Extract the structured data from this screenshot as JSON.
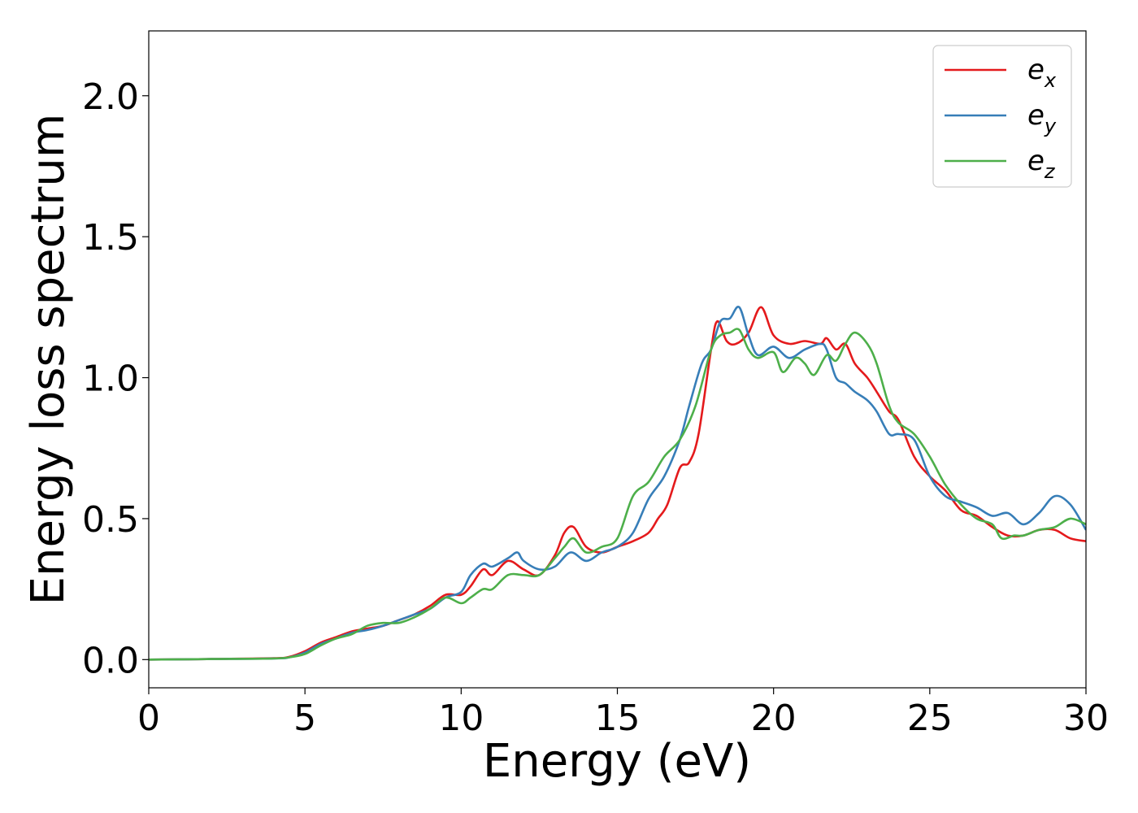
{
  "chart_data": {
    "type": "line",
    "title": "",
    "xlabel": "Energy (eV)",
    "ylabel": "Energy loss spectrum",
    "xlim": [
      0,
      30
    ],
    "ylim": [
      -0.1,
      2.23
    ],
    "xticks": [
      0,
      5,
      10,
      15,
      20,
      25,
      30
    ],
    "xtick_labels": [
      "0",
      "5",
      "10",
      "15",
      "20",
      "25",
      "30"
    ],
    "yticks": [
      0.0,
      0.5,
      1.0,
      1.5,
      2.0
    ],
    "ytick_labels": [
      "0.0",
      "0.5",
      "1.0",
      "1.5",
      "2.0"
    ],
    "grid": false,
    "legend": {
      "position": "top-right",
      "entries": [
        {
          "base": "e",
          "sub": "x",
          "color": "#e41a1c"
        },
        {
          "base": "e",
          "sub": "y",
          "color": "#377eb8"
        },
        {
          "base": "e",
          "sub": "z",
          "color": "#4daf4a"
        }
      ]
    },
    "series": [
      {
        "color": "#e41a1c",
        "x": [
          0,
          2,
          4,
          4.5,
          5,
          5.5,
          6,
          6.5,
          7,
          7.5,
          8,
          8.5,
          9,
          9.5,
          10,
          10.3,
          10.7,
          11,
          11.5,
          12,
          12.5,
          13,
          13.3,
          13.6,
          14,
          14.5,
          15,
          15.5,
          16,
          16.3,
          16.6,
          17,
          17.3,
          17.6,
          18,
          18.2,
          18.5,
          18.8,
          19.2,
          19.6,
          20,
          20.5,
          21,
          21.5,
          21.7,
          22,
          22.3,
          22.6,
          23,
          23.3,
          23.7,
          24,
          24.5,
          25,
          25.5,
          26,
          26.5,
          27,
          27.5,
          28,
          28.5,
          29,
          29.5,
          30
        ],
        "y": [
          0.0,
          0.002,
          0.005,
          0.01,
          0.03,
          0.06,
          0.08,
          0.1,
          0.11,
          0.12,
          0.14,
          0.16,
          0.19,
          0.23,
          0.23,
          0.26,
          0.32,
          0.3,
          0.35,
          0.32,
          0.3,
          0.37,
          0.45,
          0.47,
          0.4,
          0.38,
          0.4,
          0.42,
          0.45,
          0.5,
          0.55,
          0.68,
          0.7,
          0.8,
          1.1,
          1.2,
          1.13,
          1.12,
          1.16,
          1.25,
          1.15,
          1.12,
          1.13,
          1.12,
          1.14,
          1.1,
          1.12,
          1.05,
          1.0,
          0.95,
          0.88,
          0.85,
          0.72,
          0.65,
          0.6,
          0.53,
          0.51,
          0.47,
          0.44,
          0.44,
          0.46,
          0.46,
          0.43,
          0.42
        ]
      },
      {
        "color": "#377eb8",
        "x": [
          0,
          2,
          4,
          4.5,
          5,
          5.5,
          6,
          6.5,
          7,
          7.5,
          8,
          8.5,
          9,
          9.5,
          10,
          10.3,
          10.7,
          11,
          11.5,
          11.8,
          12,
          12.5,
          13,
          13.5,
          14,
          14.5,
          15,
          15.5,
          16,
          16.5,
          17,
          17.3,
          17.7,
          18,
          18.3,
          18.6,
          18.9,
          19.2,
          19.5,
          20,
          20.5,
          21,
          21.5,
          21.7,
          22,
          22.3,
          22.6,
          23,
          23.3,
          23.7,
          24,
          24.5,
          25,
          25.5,
          26,
          26.5,
          27,
          27.5,
          28,
          28.5,
          29,
          29.5,
          30
        ],
        "y": [
          0.0,
          0.002,
          0.004,
          0.008,
          0.025,
          0.055,
          0.075,
          0.095,
          0.105,
          0.12,
          0.14,
          0.16,
          0.18,
          0.22,
          0.24,
          0.3,
          0.34,
          0.33,
          0.36,
          0.38,
          0.35,
          0.32,
          0.33,
          0.38,
          0.35,
          0.38,
          0.4,
          0.45,
          0.57,
          0.65,
          0.78,
          0.9,
          1.05,
          1.1,
          1.2,
          1.21,
          1.25,
          1.15,
          1.08,
          1.11,
          1.07,
          1.1,
          1.12,
          1.1,
          1.0,
          0.98,
          0.95,
          0.92,
          0.88,
          0.8,
          0.8,
          0.78,
          0.65,
          0.58,
          0.56,
          0.54,
          0.51,
          0.52,
          0.48,
          0.52,
          0.58,
          0.55,
          0.46
        ]
      },
      {
        "color": "#4daf4a",
        "x": [
          0,
          2,
          4,
          4.5,
          5,
          5.5,
          6,
          6.5,
          7,
          7.5,
          8,
          8.5,
          9,
          9.5,
          10,
          10.3,
          10.7,
          11,
          11.5,
          12,
          12.5,
          13,
          13.3,
          13.6,
          14,
          14.5,
          15,
          15.5,
          16,
          16.5,
          17,
          17.5,
          18,
          18.3,
          18.6,
          18.9,
          19.2,
          19.5,
          20,
          20.3,
          20.7,
          21,
          21.3,
          21.7,
          22,
          22.3,
          22.6,
          23,
          23.3,
          23.7,
          24,
          24.5,
          25,
          25.5,
          26,
          26.5,
          27,
          27.3,
          27.7,
          28,
          28.5,
          29,
          29.5,
          30
        ],
        "y": [
          0.0,
          0.002,
          0.004,
          0.008,
          0.02,
          0.05,
          0.075,
          0.09,
          0.12,
          0.13,
          0.13,
          0.15,
          0.18,
          0.22,
          0.2,
          0.22,
          0.25,
          0.25,
          0.3,
          0.3,
          0.3,
          0.36,
          0.4,
          0.43,
          0.38,
          0.4,
          0.43,
          0.58,
          0.63,
          0.72,
          0.78,
          0.9,
          1.1,
          1.15,
          1.16,
          1.17,
          1.1,
          1.07,
          1.09,
          1.02,
          1.07,
          1.05,
          1.01,
          1.08,
          1.06,
          1.12,
          1.16,
          1.12,
          1.05,
          0.9,
          0.84,
          0.8,
          0.72,
          0.62,
          0.55,
          0.5,
          0.48,
          0.43,
          0.44,
          0.44,
          0.46,
          0.47,
          0.5,
          0.48
        ]
      }
    ]
  }
}
